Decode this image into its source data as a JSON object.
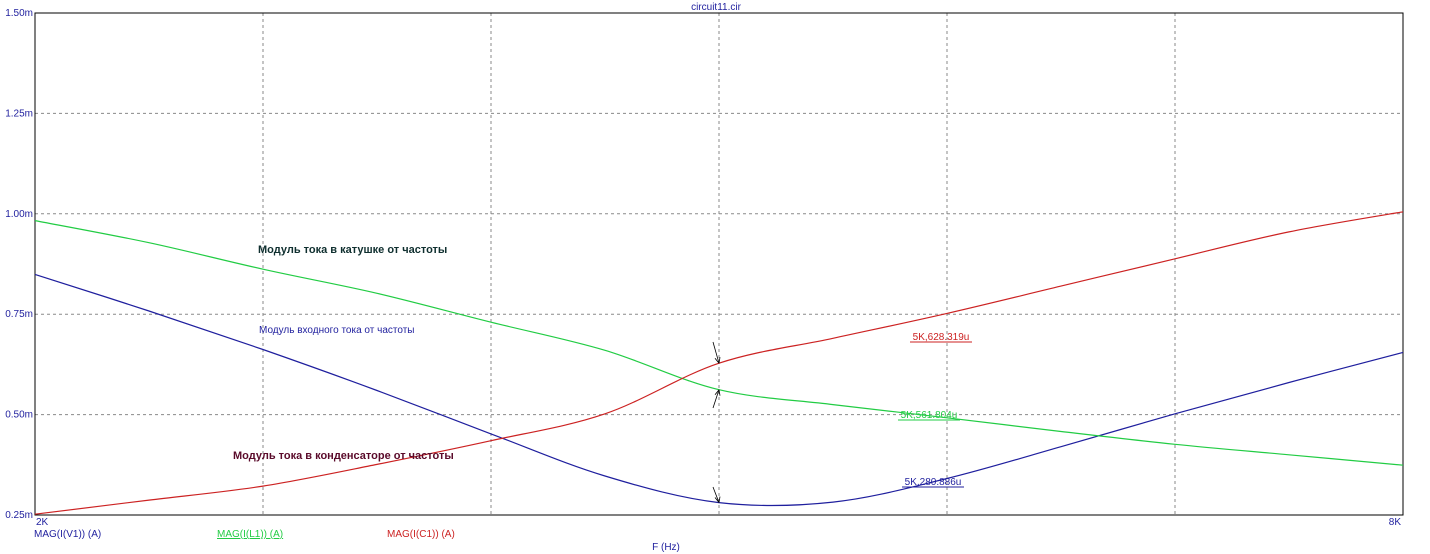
{
  "chart_data": {
    "type": "line",
    "title": "circuit11.cir",
    "xlabel": "F (Hz)",
    "ylabel": "",
    "xlim": [
      2000,
      8000
    ],
    "ylim": [
      0.00025,
      0.0015
    ],
    "x_tick_labels": [
      {
        "value": 2000,
        "label": "2K"
      },
      {
        "value": 8000,
        "label": "8K"
      }
    ],
    "y_tick_labels": [
      {
        "value": 0.00025,
        "label": "0.25m"
      },
      {
        "value": 0.0005,
        "label": "0.50m"
      },
      {
        "value": 0.00075,
        "label": "0.75m"
      },
      {
        "value": 0.001,
        "label": "1.00m"
      },
      {
        "value": 0.00125,
        "label": "1.25m"
      },
      {
        "value": 0.0015,
        "label": "1.50m"
      }
    ],
    "x_grid": [
      3000,
      4000,
      5000,
      6000,
      7000
    ],
    "y_grid": [
      0.0005,
      0.00075,
      0.001,
      0.00125
    ],
    "grid": true,
    "series": [
      {
        "name": "MAG(I(V1)) (A)",
        "color": "#1f1f9e",
        "x": [
          2000,
          2500,
          3000,
          3500,
          4000,
          4500,
          5000,
          5500,
          6000,
          6500,
          7000,
          7500,
          8000
        ],
        "values": [
          0.000849,
          0.000758,
          0.000662,
          0.00056,
          0.000452,
          0.000347,
          0.000281,
          0.000282,
          0.000341,
          0.00042,
          0.000502,
          0.00058,
          0.000655
        ]
      },
      {
        "name": "MAG(I(L1)) (A)",
        "color": "#22cc44",
        "x": [
          2000,
          2500,
          3000,
          3500,
          4000,
          4500,
          5000,
          5500,
          6000,
          6500,
          7000,
          7500,
          8000
        ],
        "values": [
          0.000983,
          0.000928,
          0.000862,
          0.000802,
          0.00073,
          0.00066,
          0.000562,
          0.000525,
          0.000492,
          0.000458,
          0.000426,
          0.0004,
          0.000374
        ]
      },
      {
        "name": "MAG(I(C1)) (A)",
        "color": "#cc2222",
        "x": [
          2000,
          2500,
          3000,
          3500,
          4000,
          4500,
          5000,
          5500,
          6000,
          6500,
          7000,
          7500,
          8000
        ],
        "values": [
          0.000252,
          0.000287,
          0.000322,
          0.000376,
          0.000435,
          0.000502,
          0.000628,
          0.00069,
          0.000752,
          0.00082,
          0.000888,
          0.000955,
          0.001005
        ]
      }
    ],
    "markers": [
      {
        "series": 2,
        "x": 5000,
        "y": 0.000628,
        "label": "5K,628.319u",
        "color": "#cc2222"
      },
      {
        "series": 1,
        "x": 5000,
        "y": 0.000562,
        "label": "5K,561.804u",
        "color": "#22cc44"
      },
      {
        "series": 0,
        "x": 5000,
        "y": 0.000281,
        "label": "5K,280.886u",
        "color": "#1f1f9e"
      }
    ],
    "annotations": [
      {
        "text": "Модуль тока в катушке от частоты",
        "color": "#0f2f2f",
        "bold": true
      },
      {
        "text": "Модуль входного тока от частоты",
        "color": "#1f1f9e",
        "bold": false
      },
      {
        "text": "Модуль тока в конденсаторе от частоты",
        "color": "#5a0a2a",
        "bold": true
      }
    ]
  }
}
